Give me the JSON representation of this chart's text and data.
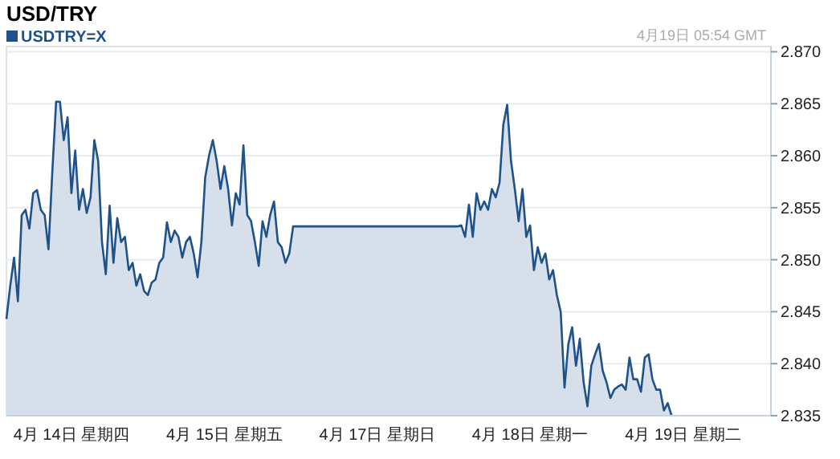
{
  "chart_data": {
    "type": "area",
    "title": "USD/TRY",
    "annotations": [
      "4月19日 05:54 GMT"
    ],
    "legend": "top left",
    "grid": "y",
    "categories": [
      null,
      null,
      null,
      null,
      null,
      null,
      null,
      null,
      null,
      null,
      null,
      null,
      null,
      null,
      null,
      null,
      null,
      "4月 14日 星期四",
      null,
      null,
      null,
      null,
      null,
      null,
      null,
      null,
      null,
      null,
      null,
      null,
      null,
      null,
      null,
      null,
      null,
      null,
      null,
      null,
      null,
      null,
      null,
      null,
      null,
      null,
      null,
      null,
      null,
      null,
      null,
      null,
      null,
      null,
      null,
      null,
      null,
      null,
      null,
      "4月 15日 星期五",
      null,
      null,
      null,
      null,
      null,
      null,
      null,
      null,
      null,
      null,
      null,
      null,
      null,
      null,
      null,
      null,
      null,
      null,
      null,
      null,
      null,
      null,
      null,
      null,
      null,
      null,
      null,
      null,
      null,
      null,
      null,
      null,
      null,
      null,
      null,
      null,
      null,
      null,
      null,
      "4月 17日 星期日",
      null,
      null,
      null,
      null,
      null,
      null,
      null,
      null,
      null,
      null,
      null,
      null,
      null,
      null,
      null,
      null,
      null,
      null,
      null,
      null,
      null,
      null,
      null,
      null,
      null,
      null,
      null,
      null,
      null,
      null,
      null,
      null,
      null,
      null,
      null,
      null,
      null,
      null,
      null,
      "4月 18日 星期一",
      null,
      null,
      null,
      null,
      null,
      null,
      null,
      null,
      null,
      null,
      null,
      null,
      null,
      null,
      null,
      null,
      null,
      null,
      null,
      null,
      null,
      null,
      null,
      null,
      null,
      null,
      null,
      null,
      null,
      null,
      null,
      null,
      null,
      null,
      null,
      null,
      null,
      null,
      null,
      "4月 19日 星期二",
      null,
      null,
      null,
      null,
      null,
      null,
      null,
      null,
      null,
      null,
      null,
      null,
      null,
      null,
      null,
      null,
      null,
      null,
      null,
      null,
      null,
      null,
      null
    ],
    "ylim": [
      2.835,
      2.8705
    ],
    "yticks": [
      {
        "value": 2.835,
        "label": "2.835"
      },
      {
        "value": 2.84,
        "label": "2.840"
      },
      {
        "value": 2.845,
        "label": "2.845"
      },
      {
        "value": 2.85,
        "label": "2.850"
      },
      {
        "value": 2.855,
        "label": "2.855"
      },
      {
        "value": 2.86,
        "label": "2.860"
      },
      {
        "value": 2.865,
        "label": "2.865"
      },
      {
        "value": 2.87,
        "label": "2.870"
      }
    ],
    "series": [
      {
        "name": "USDTRY=X",
        "color": "#1f5288",
        "values": [
          2.8443,
          2.8475,
          2.8502,
          2.846,
          2.8543,
          2.8548,
          2.853,
          2.8564,
          2.8567,
          2.8548,
          2.8543,
          2.851,
          2.8584,
          2.8652,
          2.8652,
          2.8615,
          2.8637,
          2.8564,
          2.8605,
          2.8548,
          2.8568,
          2.8545,
          2.856,
          2.8615,
          2.8595,
          2.8517,
          2.8486,
          2.8552,
          2.8497,
          2.854,
          2.8517,
          2.8522,
          2.849,
          2.8497,
          2.8475,
          2.8486,
          2.847,
          2.8466,
          2.8478,
          2.8481,
          2.8497,
          2.8502,
          2.8536,
          2.8517,
          2.8528,
          2.8522,
          2.8502,
          2.8517,
          2.8522,
          2.8506,
          2.8483,
          2.8517,
          2.8579,
          2.86,
          2.8615,
          2.8595,
          2.8568,
          2.859,
          2.8568,
          2.8533,
          2.8564,
          2.8553,
          2.861,
          2.8543,
          2.8537,
          2.8517,
          2.8494,
          2.8537,
          2.8522,
          2.8543,
          2.8556,
          2.8517,
          2.8512,
          2.8497,
          2.8506,
          2.8532,
          2.8532,
          2.8532,
          2.8532,
          2.8532,
          2.8532,
          2.8532,
          2.8532,
          2.8532,
          2.8532,
          2.8532,
          2.8532,
          2.8532,
          2.8532,
          2.8532,
          2.8532,
          2.8532,
          2.8532,
          2.8532,
          2.8532,
          2.8532,
          2.8532,
          2.8532,
          2.8532,
          2.8532,
          2.8532,
          2.8532,
          2.8532,
          2.8532,
          2.8532,
          2.8532,
          2.8532,
          2.8532,
          2.8532,
          2.8532,
          2.8532,
          2.8532,
          2.8532,
          2.8532,
          2.8532,
          2.8532,
          2.8532,
          2.8532,
          2.8532,
          2.8533,
          2.8522,
          2.8553,
          2.8522,
          2.8564,
          2.8548,
          2.8556,
          2.8548,
          2.8568,
          2.856,
          2.8574,
          2.863,
          2.8649,
          2.8595,
          2.8568,
          2.8537,
          2.8568,
          2.8522,
          2.8533,
          2.849,
          2.8512,
          2.8497,
          2.8506,
          2.8481,
          2.849,
          2.8466,
          2.845,
          2.8377,
          2.8419,
          2.8435,
          2.8398,
          2.8424,
          2.8382,
          2.8359,
          2.8398,
          2.8409,
          2.8419,
          2.8393,
          2.8382,
          2.8367,
          2.8375,
          2.8378,
          2.838,
          2.8375,
          2.8406,
          2.8385,
          2.8385,
          2.8373,
          2.8406,
          2.8409,
          2.8385,
          2.8375,
          2.8375,
          2.8355,
          2.8362,
          2.835,
          null,
          null,
          null,
          null,
          null,
          null,
          null,
          null,
          null,
          null,
          null,
          null,
          null,
          null,
          null,
          null,
          null,
          null,
          null,
          null,
          null,
          null,
          null,
          null,
          null,
          null
        ]
      }
    ]
  }
}
